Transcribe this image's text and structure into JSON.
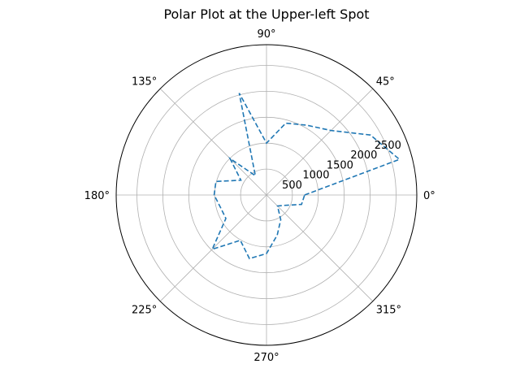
{
  "chart_data": {
    "type": "line",
    "projection": "polar",
    "title": "Polar Plot at the Upper-left Spot",
    "theta_unit": "degrees",
    "theta_ticks": [
      0,
      45,
      90,
      135,
      180,
      225,
      270,
      315
    ],
    "theta_tick_labels": [
      "0°",
      "45°",
      "90°",
      "135°",
      "180°",
      "225°",
      "270°",
      "315°"
    ],
    "r_ticks": [
      500,
      1000,
      1500,
      2000,
      2500
    ],
    "r_tick_labels": [
      "500",
      "1000",
      "1500",
      "2000",
      "2500"
    ],
    "rlim": [
      0,
      2900
    ],
    "grid": true,
    "series": [
      {
        "color": "#1f77b4",
        "linestyle": "dashed",
        "theta": [
          0,
          15,
          30,
          45,
          60,
          75,
          90,
          105,
          120,
          135,
          150,
          165,
          180,
          195,
          210,
          225,
          240,
          255,
          270,
          285,
          300,
          315,
          330,
          345,
          360
        ],
        "r": [
          735,
          2655,
          2315,
          1760,
          1555,
          1435,
          1000,
          2035,
          430,
          995,
          570,
          1010,
          1010,
          920,
          905,
          1480,
          1010,
          1270,
          1130,
          800,
          550,
          300,
          400,
          700,
          735
        ]
      }
    ]
  }
}
